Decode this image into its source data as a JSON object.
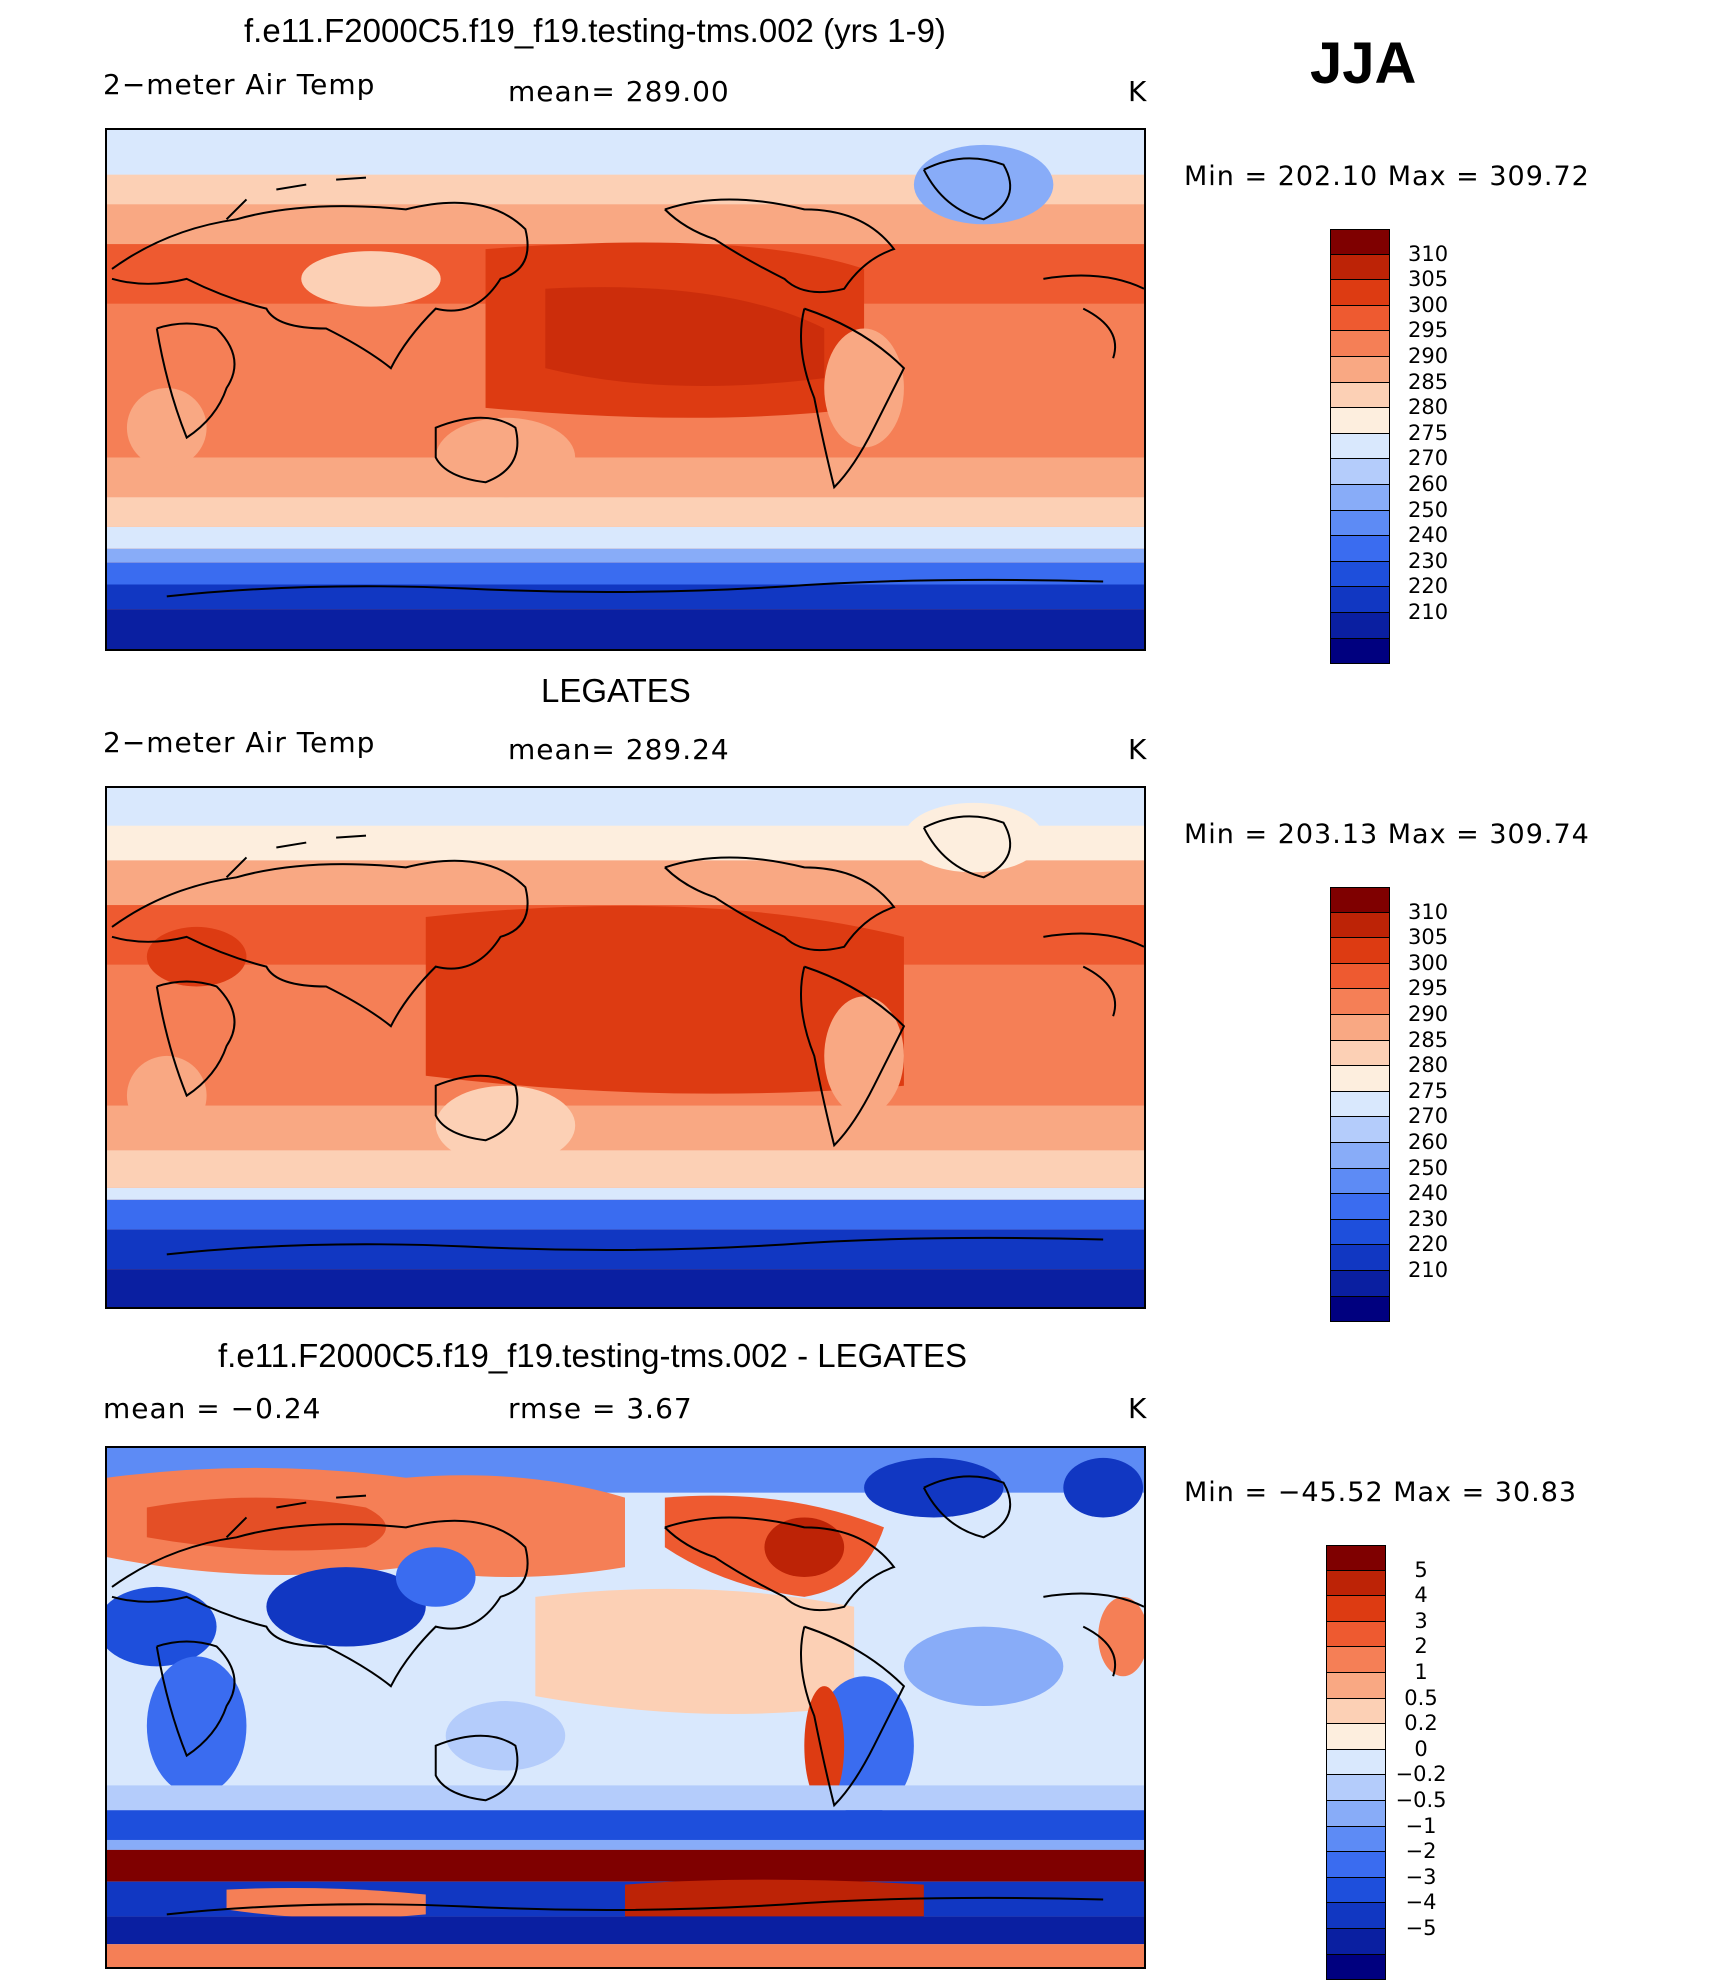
{
  "season": "JJA",
  "colors": {
    "temp_scale": [
      "#00007f",
      "#0a1fa1",
      "#1137c2",
      "#1e4fdc",
      "#3a6cf0",
      "#5d8bf5",
      "#88acf8",
      "#b4ccfb",
      "#d9e8fd",
      "#fdeede",
      "#fcd0b5",
      "#f9a883",
      "#f57f56",
      "#ee5a30",
      "#dd3b12",
      "#bd2306",
      "#7f0000"
    ],
    "diff_scale": [
      "#00007f",
      "#0a1fa1",
      "#1137c2",
      "#1e4fdc",
      "#3a6cf0",
      "#5d8bf5",
      "#88acf8",
      "#b4ccfb",
      "#d9e8fd",
      "#fdeede",
      "#fcd0b5",
      "#f9a883",
      "#f57f56",
      "#ee5a30",
      "#dd3b12",
      "#bd2306",
      "#7f0000"
    ]
  },
  "panels": [
    {
      "title": "f.e11.F2000C5.f19_f19.testing-tms.002 (yrs 1-9)",
      "left_label": "2−meter Air Temp",
      "center_label": "mean=  289.00",
      "units": "K",
      "minmax": "Min  =  202.10  Max  =  309.72",
      "colorbar_labels": [
        "310",
        "305",
        "300",
        "295",
        "290",
        "285",
        "280",
        "275",
        "270",
        "260",
        "250",
        "240",
        "230",
        "220",
        "210"
      ],
      "field": "temp"
    },
    {
      "title": "LEGATES",
      "left_label": "2−meter Air Temp",
      "center_label": "mean=  289.24",
      "units": "K",
      "minmax": "Min  =  203.13  Max  =  309.74",
      "colorbar_labels": [
        "310",
        "305",
        "300",
        "295",
        "290",
        "285",
        "280",
        "275",
        "270",
        "260",
        "250",
        "240",
        "230",
        "220",
        "210"
      ],
      "field": "temp"
    },
    {
      "title": "f.e11.F2000C5.f19_f19.testing-tms.002 - LEGATES",
      "left_label": "mean  =    −0.24",
      "center_label": "rmse  =     3.67",
      "units": "K",
      "minmax": "Min  =  −45.52  Max  =    30.83",
      "colorbar_labels": [
        "5",
        "4",
        "3",
        "2",
        "1",
        "0.5",
        "0.2",
        "0",
        "−0.2",
        "−0.5",
        "−1",
        "−2",
        "−3",
        "−4",
        "−5"
      ],
      "field": "diff"
    }
  ]
}
